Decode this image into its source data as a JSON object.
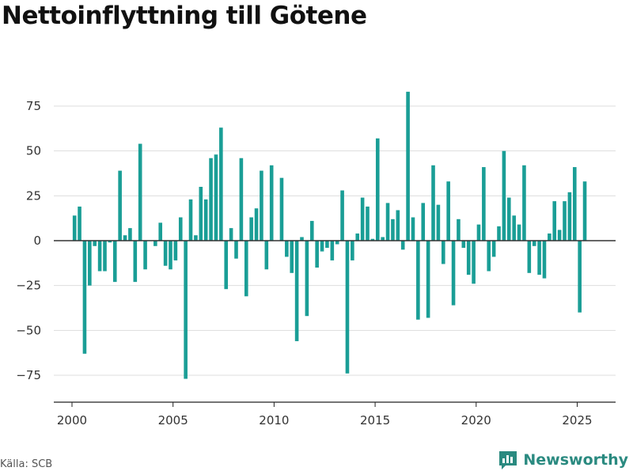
{
  "page": {
    "title": "Nettoinflyttning till Götene"
  },
  "footer": {
    "source": "Källa: SCB",
    "brand": "Newsworthy",
    "brand_icon": "bar-chart-logo-icon"
  },
  "colors": {
    "bar": "#1a9e96",
    "grid": "#dddddd",
    "zero_line": "#333333",
    "brand": "#2a8a80"
  },
  "chart_data": {
    "type": "bar",
    "title": "Nettoinflyttning till Götene",
    "xlabel": "",
    "ylabel": "",
    "ylim": [
      -90,
      90
    ],
    "xlim": [
      1999.1,
      2026.9
    ],
    "yticks": [
      75,
      50,
      25,
      0,
      -25,
      -50,
      -75
    ],
    "ytick_labels": [
      "75",
      "50",
      "25",
      "0",
      "−25",
      "−50",
      "−75"
    ],
    "xticks": [
      2000,
      2005,
      2010,
      2015,
      2020,
      2025
    ],
    "xtick_labels": [
      "2000",
      "2005",
      "2010",
      "2015",
      "2020",
      "2025"
    ],
    "grid": true,
    "x": [
      2000.125,
      2000.375,
      2000.625,
      2000.875,
      2001.125,
      2001.375,
      2001.625,
      2001.875,
      2002.125,
      2002.375,
      2002.625,
      2002.875,
      2003.125,
      2003.375,
      2003.625,
      2003.875,
      2004.125,
      2004.375,
      2004.625,
      2004.875,
      2005.125,
      2005.375,
      2005.625,
      2005.875,
      2006.125,
      2006.375,
      2006.625,
      2006.875,
      2007.125,
      2007.375,
      2007.625,
      2007.875,
      2008.125,
      2008.375,
      2008.625,
      2008.875,
      2009.125,
      2009.375,
      2009.625,
      2009.875,
      2010.125,
      2010.375,
      2010.625,
      2010.875,
      2011.125,
      2011.375,
      2011.625,
      2011.875,
      2012.125,
      2012.375,
      2012.625,
      2012.875,
      2013.125,
      2013.375,
      2013.625,
      2013.875,
      2014.125,
      2014.375,
      2014.625,
      2014.875,
      2015.125,
      2015.375,
      2015.625,
      2015.875,
      2016.125,
      2016.375,
      2016.625,
      2016.875,
      2017.125,
      2017.375,
      2017.625,
      2017.875,
      2018.125,
      2018.375,
      2018.625,
      2018.875,
      2019.125,
      2019.375,
      2019.625,
      2019.875,
      2020.125,
      2020.375,
      2020.625,
      2020.875,
      2021.125,
      2021.375,
      2021.625,
      2021.875,
      2022.125,
      2022.375,
      2022.625,
      2022.875,
      2023.125,
      2023.375,
      2023.625,
      2023.875,
      2024.125,
      2024.375,
      2024.625,
      2024.875,
      2025.125,
      2025.375
    ],
    "values": [
      14,
      19,
      -63,
      -25,
      -3,
      -17,
      -17,
      -1,
      -23,
      39,
      3,
      7,
      -23,
      54,
      -16,
      0,
      -3,
      10,
      -14,
      -16,
      -11,
      13,
      -77,
      23,
      3,
      30,
      23,
      46,
      48,
      63,
      -27,
      7,
      -10,
      46,
      -31,
      13,
      18,
      39,
      -16,
      42,
      0,
      35,
      -9,
      -18,
      -56,
      2,
      -42,
      11,
      -15,
      -6,
      -4,
      -11,
      -2,
      28,
      -74,
      -11,
      4,
      24,
      19,
      1,
      57,
      2,
      21,
      12,
      17,
      -5,
      83,
      13,
      -44,
      21,
      -43,
      42,
      20,
      -13,
      33,
      -36,
      12,
      -4,
      -19,
      -24,
      9,
      41,
      -17,
      -9,
      8,
      50,
      24,
      14,
      9,
      42,
      -18,
      -3,
      -19,
      -21,
      4,
      22,
      6,
      22,
      27,
      41,
      -40,
      33
    ]
  }
}
